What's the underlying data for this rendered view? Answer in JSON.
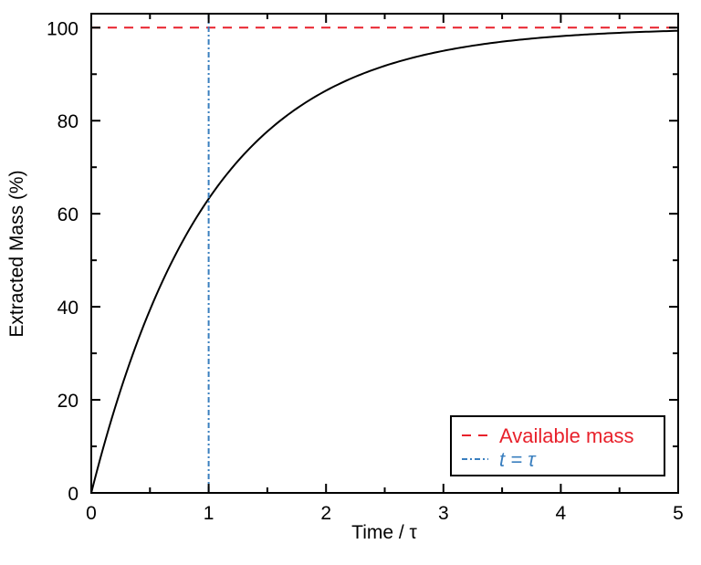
{
  "chart_data": {
    "type": "line",
    "title": "",
    "xlabel": "Time / τ",
    "ylabel": "Extracted Mass (%)",
    "xlim": [
      0,
      5
    ],
    "ylim": [
      0,
      103
    ],
    "xticks": [
      0,
      1,
      2,
      3,
      4,
      5
    ],
    "yticks": [
      0,
      20,
      40,
      60,
      80,
      100
    ],
    "xtick_labels": [
      "0",
      "1",
      "2",
      "3",
      "4",
      "5"
    ],
    "ytick_labels": [
      "0",
      "20",
      "40",
      "60",
      "80",
      "100"
    ],
    "grid": false,
    "legend_position": "bottom-right",
    "series": [
      {
        "name": "Extracted mass",
        "formula": "100*(1-exp(-t))",
        "color": "#000000",
        "style": "solid",
        "x": [
          0,
          0.25,
          0.5,
          0.75,
          1,
          1.5,
          2,
          2.5,
          3,
          3.5,
          4,
          4.5,
          5
        ],
        "y": [
          0,
          22.1,
          39.3,
          52.8,
          63.2,
          77.7,
          86.5,
          91.8,
          95.0,
          97.0,
          98.2,
          98.9,
          99.3
        ]
      },
      {
        "name": "Available mass",
        "color": "#e8212b",
        "style": "dashed",
        "y_constant": 100
      },
      {
        "name": "t = τ",
        "color": "#3a7fbf",
        "style": "dashdot",
        "x_constant": 1
      }
    ],
    "legend": [
      {
        "label": "Available mass",
        "color": "#e8212b"
      },
      {
        "label": "t = τ",
        "color": "#3a7fbf"
      }
    ]
  }
}
